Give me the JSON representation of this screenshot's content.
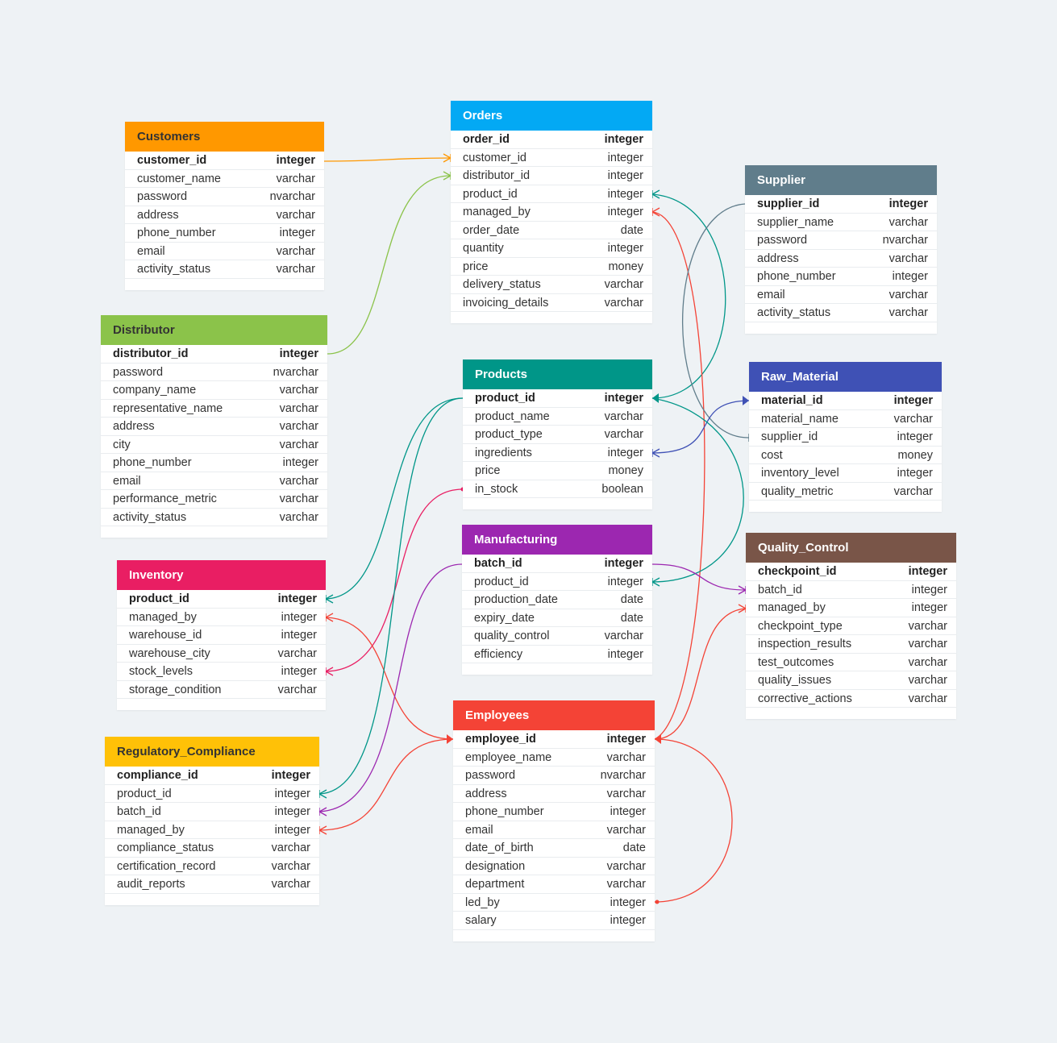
{
  "tables": {
    "customers": {
      "title": "Customers",
      "color": "#ff9800",
      "title_color": "#333333",
      "rows": [
        [
          "customer_id",
          "integer"
        ],
        [
          "customer_name",
          "varchar"
        ],
        [
          "password",
          "nvarchar"
        ],
        [
          "address",
          "varchar"
        ],
        [
          "phone_number",
          "integer"
        ],
        [
          "email",
          "varchar"
        ],
        [
          "activity_status",
          "varchar"
        ]
      ]
    },
    "distributor": {
      "title": "Distributor",
      "color": "#8bc34a",
      "title_color": "#333333",
      "rows": [
        [
          "distributor_id",
          "integer"
        ],
        [
          "password",
          "nvarchar"
        ],
        [
          "company_name",
          "varchar"
        ],
        [
          "representative_name",
          "varchar"
        ],
        [
          "address",
          "varchar"
        ],
        [
          "city",
          "varchar"
        ],
        [
          "phone_number",
          "integer"
        ],
        [
          "email",
          "varchar"
        ],
        [
          "performance_metric",
          "varchar"
        ],
        [
          "activity_status",
          "varchar"
        ]
      ]
    },
    "inventory": {
      "title": "Inventory",
      "color": "#e91e63",
      "title_color": "#ffffff",
      "rows": [
        [
          "product_id",
          "integer"
        ],
        [
          "managed_by",
          "integer"
        ],
        [
          "warehouse_id",
          "integer"
        ],
        [
          "warehouse_city",
          "varchar"
        ],
        [
          "stock_levels",
          "integer"
        ],
        [
          "storage_condition",
          "varchar"
        ]
      ]
    },
    "regulatory": {
      "title": "Regulatory_Compliance",
      "color": "#ffc107",
      "title_color": "#333333",
      "rows": [
        [
          "compliance_id",
          "integer"
        ],
        [
          "product_id",
          "integer"
        ],
        [
          "batch_id",
          "integer"
        ],
        [
          "managed_by",
          "integer"
        ],
        [
          "compliance_status",
          "varchar"
        ],
        [
          "certification_record",
          "varchar"
        ],
        [
          "audit_reports",
          "varchar"
        ]
      ]
    },
    "orders": {
      "title": "Orders",
      "color": "#03a9f4",
      "title_color": "#ffffff",
      "rows": [
        [
          "order_id",
          "integer"
        ],
        [
          "customer_id",
          "integer"
        ],
        [
          "distributor_id",
          "integer"
        ],
        [
          "product_id",
          "integer"
        ],
        [
          "managed_by",
          "integer"
        ],
        [
          "order_date",
          "date"
        ],
        [
          "quantity",
          "integer"
        ],
        [
          "price",
          "money"
        ],
        [
          "delivery_status",
          "varchar"
        ],
        [
          "invoicing_details",
          "varchar"
        ]
      ]
    },
    "products": {
      "title": "Products",
      "color": "#009688",
      "title_color": "#ffffff",
      "rows": [
        [
          "product_id",
          "integer"
        ],
        [
          "product_name",
          "varchar"
        ],
        [
          "product_type",
          "varchar"
        ],
        [
          "ingredients",
          "integer"
        ],
        [
          "price",
          "money"
        ],
        [
          "in_stock",
          "boolean"
        ]
      ]
    },
    "manufacturing": {
      "title": "Manufacturing",
      "color": "#9c27b0",
      "title_color": "#ffffff",
      "rows": [
        [
          "batch_id",
          "integer"
        ],
        [
          "product_id",
          "integer"
        ],
        [
          "production_date",
          "date"
        ],
        [
          "expiry_date",
          "date"
        ],
        [
          "quality_control",
          "varchar"
        ],
        [
          "efficiency",
          "integer"
        ]
      ]
    },
    "employees": {
      "title": "Employees",
      "color": "#f44336",
      "title_color": "#ffffff",
      "rows": [
        [
          "employee_id",
          "integer"
        ],
        [
          "employee_name",
          "varchar"
        ],
        [
          "password",
          "nvarchar"
        ],
        [
          "address",
          "varchar"
        ],
        [
          "phone_number",
          "integer"
        ],
        [
          "email",
          "varchar"
        ],
        [
          "date_of_birth",
          "date"
        ],
        [
          "designation",
          "varchar"
        ],
        [
          "department",
          "varchar"
        ],
        [
          "led_by",
          "integer"
        ],
        [
          "salary",
          "integer"
        ]
      ]
    },
    "supplier": {
      "title": "Supplier",
      "color": "#607d8b",
      "title_color": "#ffffff",
      "rows": [
        [
          "supplier_id",
          "integer"
        ],
        [
          "supplier_name",
          "varchar"
        ],
        [
          "password",
          "nvarchar"
        ],
        [
          "address",
          "varchar"
        ],
        [
          "phone_number",
          "integer"
        ],
        [
          "email",
          "varchar"
        ],
        [
          "activity_status",
          "varchar"
        ]
      ]
    },
    "raw": {
      "title": "Raw_Material",
      "color": "#3f51b5",
      "title_color": "#ffffff",
      "rows": [
        [
          "material_id",
          "integer"
        ],
        [
          "material_name",
          "varchar"
        ],
        [
          "supplier_id",
          "integer"
        ],
        [
          "cost",
          "money"
        ],
        [
          "inventory_level",
          "integer"
        ],
        [
          "quality_metric",
          "varchar"
        ]
      ]
    },
    "quality": {
      "title": "Quality_Control",
      "color": "#795548",
      "title_color": "#ffffff",
      "rows": [
        [
          "checkpoint_id",
          "integer"
        ],
        [
          "batch_id",
          "integer"
        ],
        [
          "managed_by",
          "integer"
        ],
        [
          "checkpoint_type",
          "varchar"
        ],
        [
          "inspection_results",
          "varchar"
        ],
        [
          "test_outcomes",
          "varchar"
        ],
        [
          "quality_issues",
          "varchar"
        ],
        [
          "corrective_actions",
          "varchar"
        ]
      ]
    }
  }
}
